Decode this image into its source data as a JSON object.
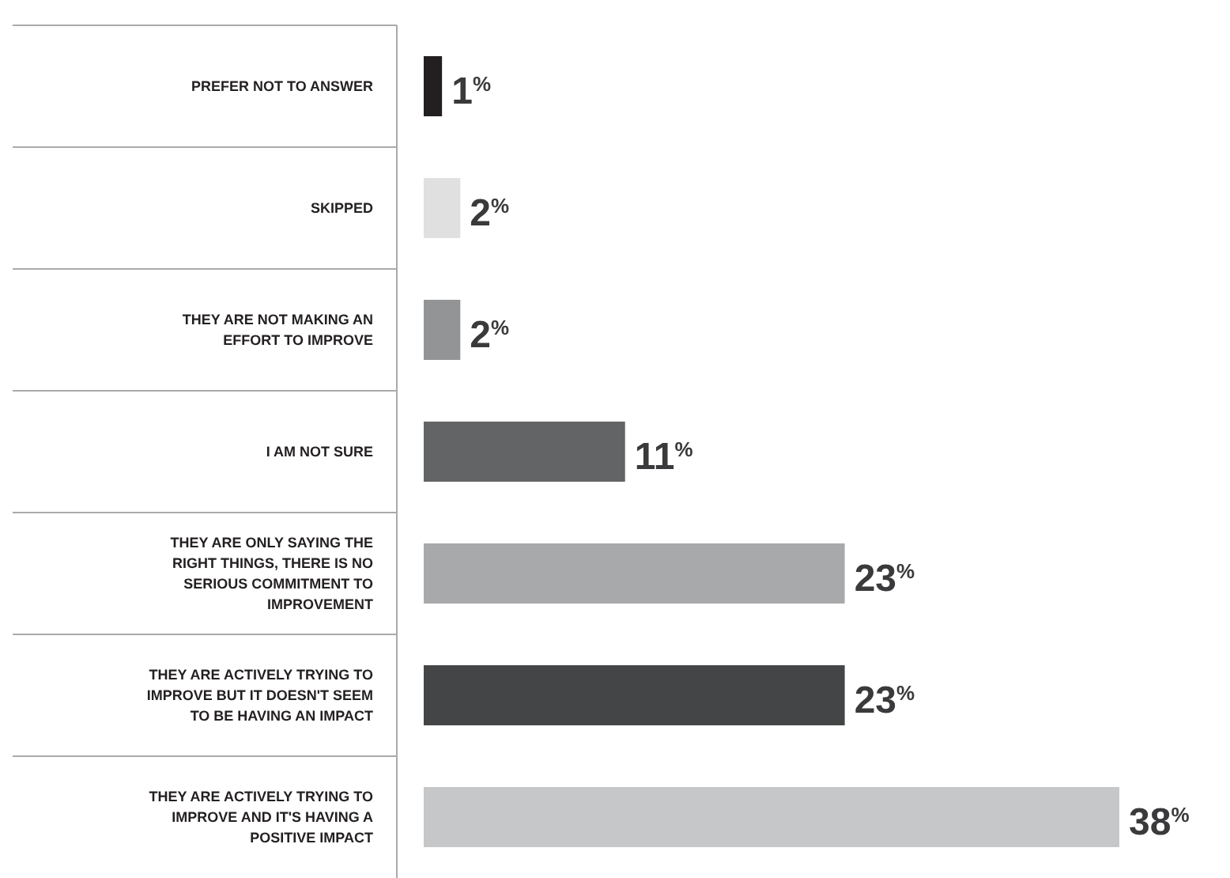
{
  "chart_data": {
    "type": "bar",
    "orientation": "horizontal",
    "categories": [
      "PREFER NOT TO ANSWER",
      "SKIPPED",
      "THEY ARE NOT MAKING AN EFFORT TO IMPROVE",
      "I AM NOT SURE",
      "THEY ARE ONLY SAYING THE RIGHT THINGS, THERE IS NO SERIOUS COMMITMENT TO IMPROVEMENT",
      "THEY ARE ACTIVELY TRYING TO IMPROVE BUT IT DOESN'T SEEM TO BE HAVING AN IMPACT",
      "THEY ARE ACTIVELY TRYING TO IMPROVE AND IT'S HAVING A POSITIVE IMPACT"
    ],
    "values": [
      1,
      2,
      2,
      11,
      23,
      23,
      38
    ],
    "colors": [
      "#231f20",
      "#e0e0e1",
      "#939496",
      "#636466",
      "#a8a9ab",
      "#444547",
      "#c6c7c8"
    ],
    "value_labels": [
      "1$^{%}$",
      "2$^{%}$",
      "2$^{%}$",
      "11$^{%}$",
      "23$^{%}$",
      "23$^{%}$",
      "38$^{%}$"
    ]
  }
}
